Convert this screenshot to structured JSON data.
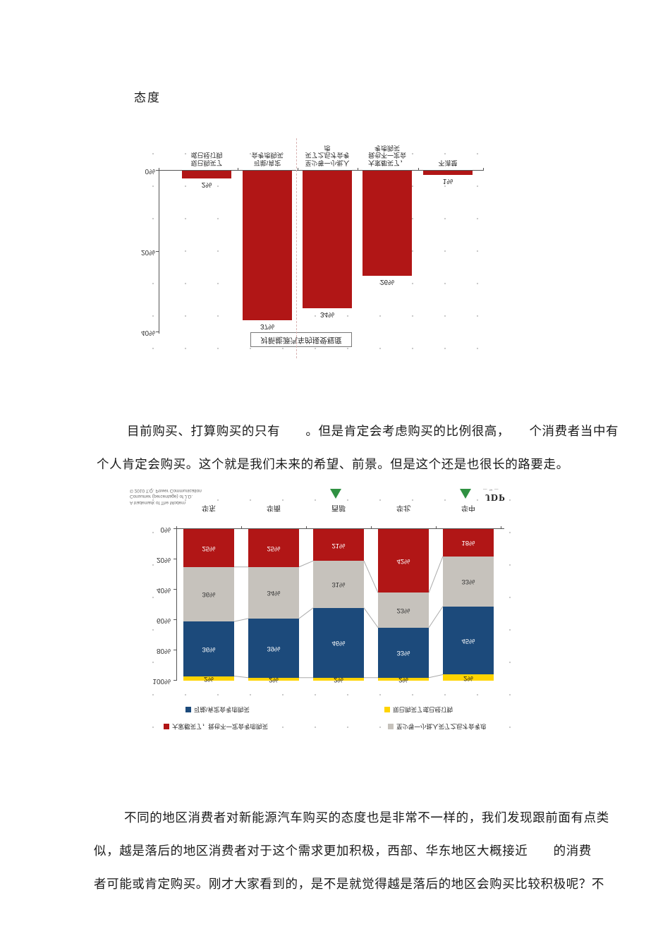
{
  "heading": "态度",
  "paragraph1": {
    "lines": [
      "目前购买、打算购买的只有　　。但是肯定会考虑购买的比例很高，　　个消费者当中有",
      "个人肯定会购买。这个就是我们未来的希望、前景。但是这个还是也很长的路要走。"
    ]
  },
  "paragraph2": {
    "lines": [
      "不同的地区消费者对新能源汽车购买的态度也是非常不一样的，我们发现跟前面有点类",
      "似，越是落后的地区消费者对于这个需求更加积极，西部、华东地区大概接近　　的消费",
      "者可能或肯定购买。刚才大家看到的，是不是就觉得越是落后的地区会购买比较积极呢？不"
    ]
  },
  "chart_data": [
    {
      "type": "bar",
      "title": "对新能源汽车的接受程度",
      "orientation": "rendered vertically mirrored (upside-down) in the scanned document",
      "bar_color": "#b11616",
      "ylim": [
        0,
        40
      ],
      "yticks": [
        "0%",
        "20%",
        "40%"
      ],
      "grid": "dotted scan texture",
      "categories": [
        {
          "label": "现已购买了或已经订购",
          "lines": [
            "现已购买了",
            "或已经订购"
          ],
          "value": 2,
          "value_label": "2%"
        },
        {
          "label": "可能\\肯定会考虑购买",
          "lines": [
            "可能\\肯定",
            "会考虑购买"
          ],
          "value": 37,
          "value_label": "37%"
        },
        {
          "label": "至少等一小批人买了之后才会考虑",
          "lines": [
            "至少等一小批人",
            "买了之后才会考",
            "虑"
          ],
          "value": 34,
          "value_label": "34%"
        },
        {
          "label": "大家都买了，我也不一定会考虑购买",
          "lines": [
            "大家都买了，",
            "我也不一定会",
            "考虑购买"
          ],
          "value": 26,
          "value_label": "26%"
        },
        {
          "label": "不清楚",
          "lines": [
            "不清楚"
          ],
          "value": 1,
          "value_label": "1%"
        }
      ]
    },
    {
      "type": "stacked-bar-100",
      "orientation": "rendered vertically mirrored (upside-down) in the scanned document",
      "categories": [
        "华东",
        "华南",
        "西部",
        "华北",
        "华中"
      ],
      "highlight_markers": [
        "西部",
        "华中"
      ],
      "marker_color": "#2f9142",
      "ylim": [
        0,
        100
      ],
      "yticks": [
        "0%",
        "20%",
        "40%",
        "60%",
        "80%",
        "100%"
      ],
      "series": [
        {
          "name": "大家都买了，我也不一定会考虑购买",
          "color": "#b11616",
          "text_color": "#ffffff",
          "values": [
            25,
            25,
            21,
            42,
            18
          ]
        },
        {
          "name": "至少等一小批人买了之后才会考虑",
          "color": "#c6c2bc",
          "text_color": "#333333",
          "values": [
            36,
            34,
            31,
            23,
            33
          ]
        },
        {
          "name": "可能\\肯定会考虑购买",
          "color": "#1c4a7b",
          "text_color": "#ffffff",
          "values": [
            36,
            39,
            46,
            33,
            45
          ]
        },
        {
          "name": "现已购买了或已经订购",
          "color": "#ffd400",
          "text_color": "#222222",
          "values": [
            2,
            2,
            2,
            2,
            2
          ]
        }
      ],
      "legend_rows": [
        [
          {
            "color": "#1c4a7b",
            "label": "可能\\肯定会考虑购买"
          },
          {
            "color": "#ffd400",
            "label": "现已购买了或已经订购"
          }
        ],
        [
          {
            "color": "#b11616",
            "label": "大家都买了，我也不一定会考虑购买"
          },
          {
            "color": "#c6c2bc",
            "label": "至少等一小批人买了之后才会考虑"
          }
        ]
      ],
      "fine_print": [
        "A trademark of The Modern",
        "Consumer (percentage) of J.D.",
        "© 2010 T.Q. Power Communication"
      ],
      "logo": "JDP"
    }
  ]
}
